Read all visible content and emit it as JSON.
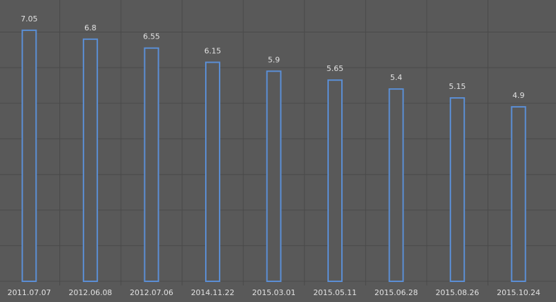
{
  "chart_data": {
    "type": "bar",
    "categories": [
      "2011.07.07",
      "2012.06.08",
      "2012.07.06",
      "2014.11.22",
      "2015.03.01",
      "2015.05.11",
      "2015.06.28",
      "2015.08.26",
      "2015.10.24"
    ],
    "values": [
      7.05,
      6.8,
      6.55,
      6.15,
      5.9,
      5.65,
      5.4,
      5.15,
      4.9
    ],
    "color": "#5b8fd6",
    "ylim": [
      0,
      7.9
    ],
    "yticks": [
      0,
      1,
      2,
      3,
      4,
      5,
      6,
      7
    ],
    "grid": true
  }
}
